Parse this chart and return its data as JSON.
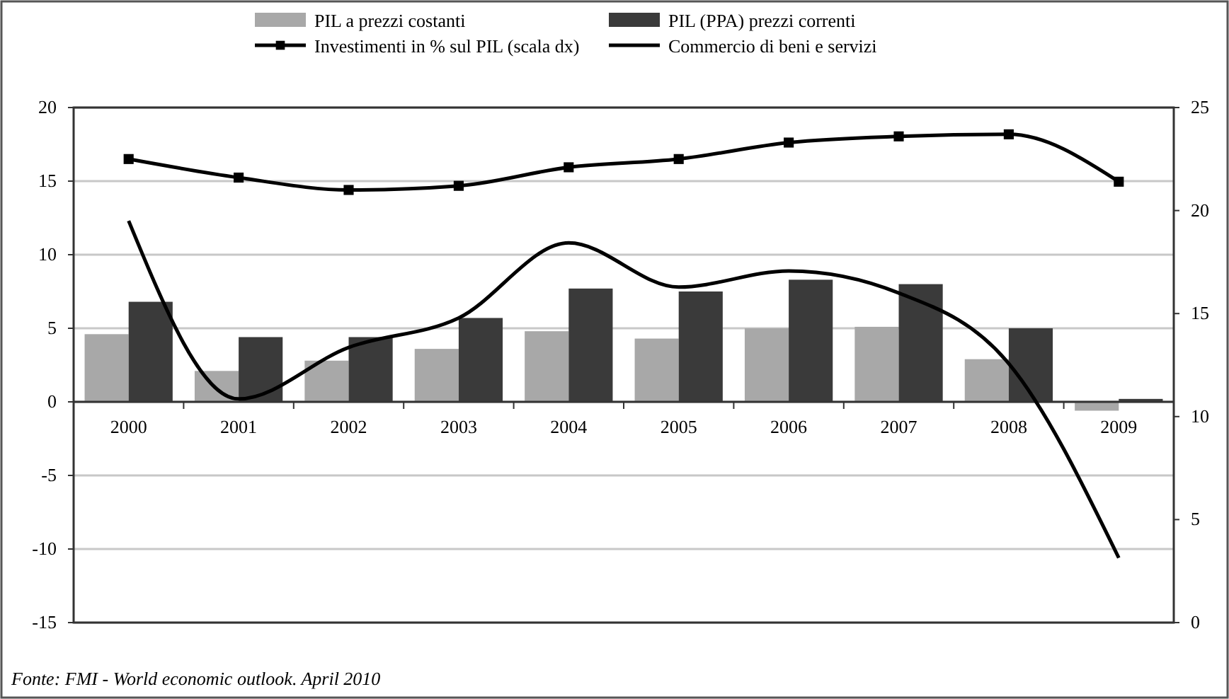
{
  "chart_data": {
    "type": "bar",
    "categories": [
      "2000",
      "2001",
      "2002",
      "2003",
      "2004",
      "2005",
      "2006",
      "2007",
      "2008",
      "2009"
    ],
    "series": [
      {
        "name": "PIL a prezzi costanti",
        "color": "#a8a8a8",
        "values": [
          4.6,
          2.1,
          2.8,
          3.6,
          4.8,
          4.3,
          5.0,
          5.1,
          2.9,
          -0.6
        ]
      },
      {
        "name": "PIL (PPA) prezzi correnti",
        "color": "#3a3a3a",
        "values": [
          6.8,
          4.4,
          4.4,
          5.7,
          7.7,
          7.5,
          8.3,
          8.0,
          5.0,
          0.2
        ]
      },
      {
        "name": "Investimenti in % sul PIL (scala dx)",
        "type": "line",
        "axis": "y2",
        "marker": "square",
        "color": "#000000",
        "values": [
          22.5,
          21.6,
          21.0,
          21.2,
          22.1,
          22.5,
          23.3,
          23.6,
          23.7,
          21.4
        ]
      },
      {
        "name": "Commercio di beni e servizi",
        "type": "line",
        "color": "#000000",
        "values": [
          12.3,
          0.2,
          3.7,
          5.7,
          10.8,
          7.8,
          8.9,
          7.4,
          2.6,
          -10.6
        ]
      }
    ],
    "ylim": [
      -15,
      20
    ],
    "yticks": [
      -15,
      -10,
      -5,
      0,
      5,
      10,
      15,
      20
    ],
    "y2lim": [
      0,
      25
    ],
    "y2ticks": [
      0,
      5,
      10,
      15,
      20,
      25
    ],
    "grid": "y",
    "legend": "top",
    "annotations": [
      "Fonte: FMI - World economic outlook. April 2010"
    ]
  }
}
